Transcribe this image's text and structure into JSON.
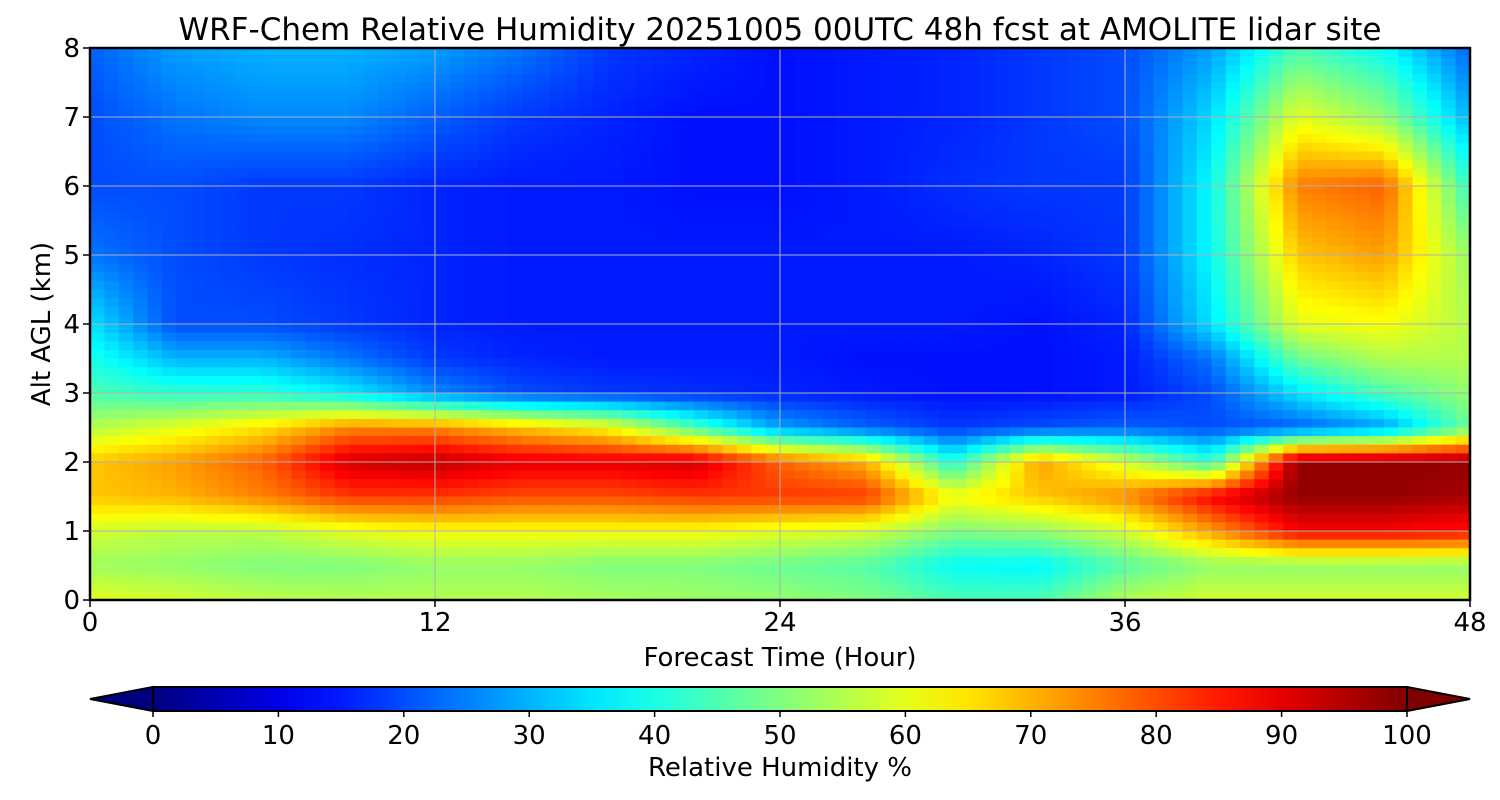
{
  "chart_data": {
    "type": "heatmap",
    "title": "WRF-Chem Relative Humidity 20251005 00UTC 48h fcst at AMOLITE lidar site",
    "xlabel": "Forecast Time (Hour)",
    "ylabel": "Alt AGL (km)",
    "xlim": [
      0,
      48
    ],
    "ylim": [
      0,
      8
    ],
    "x_ticks": [
      "0",
      "12",
      "24",
      "36",
      "48"
    ],
    "y_ticks": [
      "0",
      "1",
      "2",
      "3",
      "4",
      "5",
      "6",
      "7",
      "8"
    ],
    "grid": true,
    "colormap": "jet",
    "colorbar": {
      "label": "Relative Humidity %",
      "ticks": [
        "0",
        "10",
        "20",
        "30",
        "40",
        "50",
        "60",
        "70",
        "80",
        "90",
        "100"
      ],
      "range": [
        0,
        100
      ],
      "extend": "both",
      "orientation": "horizontal",
      "placement": "bottom"
    },
    "x": [
      0,
      3,
      6,
      9,
      12,
      15,
      18,
      21,
      24,
      27,
      30,
      33,
      36,
      39,
      42,
      45,
      48
    ],
    "y": [
      0,
      0.5,
      1,
      1.5,
      2,
      2.5,
      3,
      3.5,
      4,
      5,
      6,
      7,
      8
    ],
    "z": [
      [
        60,
        58,
        56,
        55,
        55,
        55,
        54,
        53,
        52,
        50,
        45,
        45,
        55,
        58,
        58,
        58,
        58
      ],
      [
        53,
        52,
        50,
        50,
        52,
        52,
        50,
        50,
        48,
        46,
        38,
        37,
        46,
        52,
        52,
        52,
        52
      ],
      [
        58,
        56,
        56,
        60,
        62,
        62,
        62,
        62,
        60,
        58,
        50,
        52,
        58,
        72,
        88,
        88,
        86
      ],
      [
        68,
        70,
        75,
        82,
        82,
        80,
        80,
        82,
        82,
        82,
        62,
        68,
        74,
        88,
        98,
        98,
        96
      ],
      [
        68,
        72,
        78,
        92,
        94,
        90,
        90,
        92,
        78,
        70,
        40,
        72,
        58,
        42,
        98,
        98,
        98
      ],
      [
        55,
        60,
        65,
        74,
        74,
        68,
        62,
        45,
        28,
        22,
        18,
        20,
        22,
        20,
        22,
        28,
        48
      ],
      [
        45,
        42,
        42,
        36,
        26,
        20,
        18,
        17,
        16,
        15,
        14,
        14,
        15,
        20,
        35,
        45,
        52
      ],
      [
        40,
        30,
        30,
        24,
        18,
        16,
        15,
        15,
        15,
        14,
        14,
        14,
        15,
        24,
        48,
        55,
        55
      ],
      [
        35,
        20,
        20,
        18,
        16,
        15,
        15,
        15,
        15,
        15,
        15,
        14,
        16,
        35,
        60,
        62,
        55
      ],
      [
        24,
        20,
        18,
        17,
        16,
        15,
        15,
        15,
        15,
        15,
        15,
        16,
        18,
        38,
        68,
        72,
        52
      ],
      [
        20,
        20,
        18,
        18,
        16,
        15,
        15,
        14,
        14,
        15,
        17,
        18,
        18,
        38,
        75,
        78,
        42
      ],
      [
        20,
        24,
        26,
        26,
        22,
        18,
        16,
        14,
        14,
        15,
        16,
        18,
        20,
        34,
        60,
        52,
        30
      ],
      [
        22,
        28,
        30,
        30,
        28,
        24,
        18,
        16,
        14,
        15,
        16,
        18,
        20,
        28,
        45,
        38,
        22
      ]
    ]
  }
}
